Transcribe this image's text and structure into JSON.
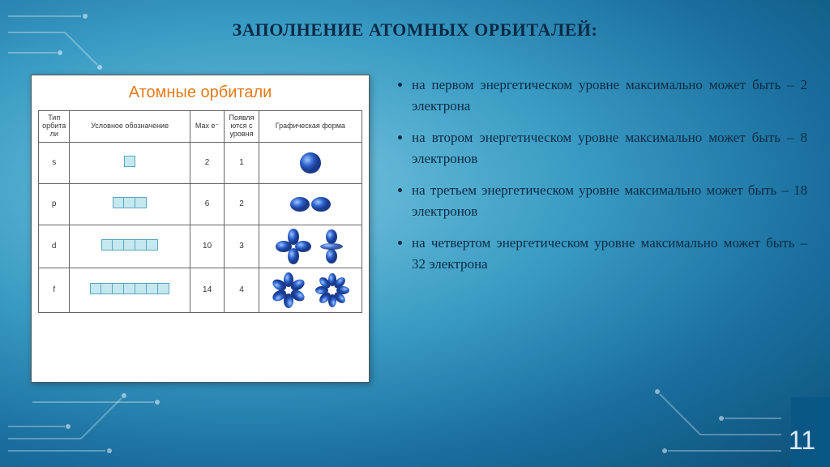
{
  "title": "ЗАПОЛНЕНИЕ АТОМНЫХ ОРБИТАЛЕЙ:",
  "card_title": "Атомные орбитали",
  "table": {
    "headers": [
      "Тип орбита ли",
      "Условное обозначение",
      "Мах e⁻",
      "Появля ются с уровня",
      "Графическая форма"
    ],
    "rows": [
      {
        "type": "s",
        "boxes": 1,
        "max_e": "2",
        "appears": "1",
        "shape": "s"
      },
      {
        "type": "p",
        "boxes": 3,
        "max_e": "6",
        "appears": "2",
        "shape": "p"
      },
      {
        "type": "d",
        "boxes": 5,
        "max_e": "10",
        "appears": "3",
        "shape": "d"
      },
      {
        "type": "f",
        "boxes": 7,
        "max_e": "14",
        "appears": "4",
        "shape": "f"
      }
    ]
  },
  "bullets": [
    "на первом энергетическом уровне максимально может быть – 2 электрона",
    "на втором энергетическом уровне максимально может быть – 8 электронов",
    "на третьем энергетическом уровне максимально может быть – 18 электронов",
    "на четвертом энергетическом уровне максимально может быть – 32 электрона"
  ],
  "page_number": "11",
  "colors": {
    "title_text": "#0a2a45",
    "card_title": "#e67a1a",
    "box_fill": "#c5e8f0",
    "box_border": "#5aa6bf",
    "orbital_fill": "#2a5fc9",
    "orbital_dark": "#1a3a8a",
    "page_num": "#dfeaf2"
  }
}
